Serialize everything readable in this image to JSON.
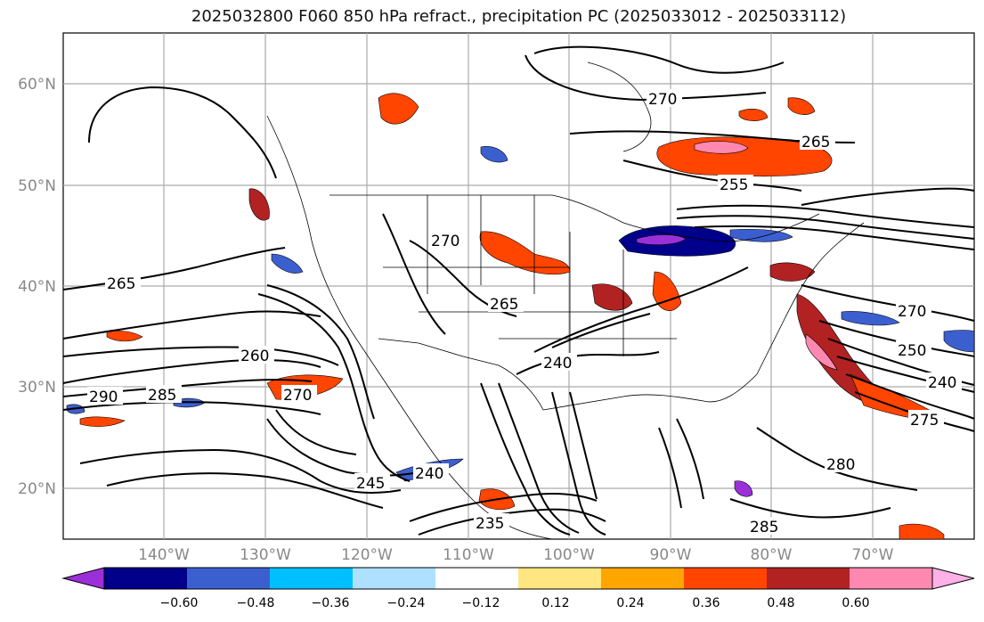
{
  "title": "2025032800 F060 850 hPa refract., precipitation PC (2025033012 - 2025033112)",
  "axes": {
    "lat_labels": [
      "60°N",
      "50°N",
      "40°N",
      "30°N",
      "20°N"
    ],
    "lon_labels": [
      "140°W",
      "130°W",
      "120°W",
      "110°W",
      "100°W",
      "90°W",
      "80°W",
      "70°W"
    ]
  },
  "contour_labels": [
    {
      "text": "270",
      "ref": "n-central"
    },
    {
      "text": "265",
      "ref": "canada-east"
    },
    {
      "text": "255",
      "ref": "great-lakes-north"
    },
    {
      "text": "265",
      "ref": "pacific-west"
    },
    {
      "text": "260",
      "ref": "pacific-mid"
    },
    {
      "text": "290",
      "ref": "pacific-sw"
    },
    {
      "text": "285",
      "ref": "pacific-sw2"
    },
    {
      "text": "270",
      "ref": "baja-west"
    },
    {
      "text": "245",
      "ref": "baja-south"
    },
    {
      "text": "240",
      "ref": "mexico-pacific"
    },
    {
      "text": "235",
      "ref": "mexico-south"
    },
    {
      "text": "240",
      "ref": "texas"
    },
    {
      "text": "270",
      "ref": "atlantic-north"
    },
    {
      "text": "250",
      "ref": "atlantic-mid"
    },
    {
      "text": "240",
      "ref": "atlantic-south"
    },
    {
      "text": "285",
      "ref": "caribbean"
    },
    {
      "text": "280",
      "ref": "caribbean-east"
    },
    {
      "text": "270",
      "ref": "plains"
    },
    {
      "text": "265",
      "ref": "rockies"
    },
    {
      "text": "275",
      "ref": "gulf-east"
    }
  ],
  "colorbar": {
    "ticks": [
      "−0.60",
      "−0.48",
      "−0.36",
      "−0.24",
      "−0.12",
      "0.12",
      "0.24",
      "0.36",
      "0.48",
      "0.60"
    ],
    "colors": [
      "#9b30d9",
      "#00008b",
      "#3c5fd0",
      "#00bfff",
      "#aee0ff",
      "#ffffff",
      "#ffe680",
      "#ffa500",
      "#ff4500",
      "#b22222",
      "#ff88b0",
      "#ffb0e6"
    ]
  },
  "colors": {
    "contour": "#000000",
    "grid": "#aaaaaa",
    "boundary": "#000000"
  }
}
